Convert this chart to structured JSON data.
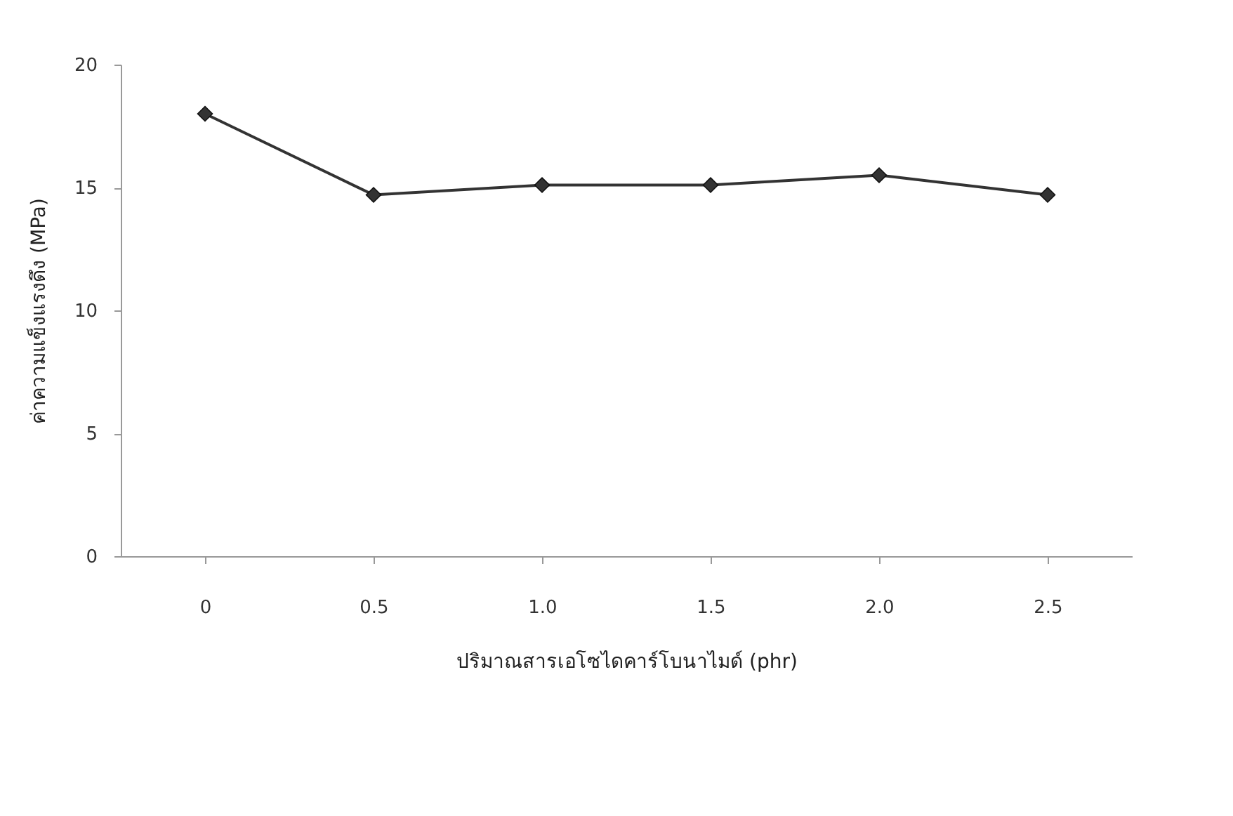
{
  "chart_data": {
    "type": "line",
    "xlabel": "ปริมาณสารเอโซไดคาร์โบนาไมด์ (phr)",
    "ylabel": "ค่าความแข็งแรงดึง (MPa)",
    "categories": [
      "0",
      "0.5",
      "1.0",
      "1.5",
      "2.0",
      "2.5"
    ],
    "series": [
      {
        "color": "#333333",
        "values": [
          18.0,
          14.7,
          15.1,
          15.1,
          15.5,
          14.7
        ]
      }
    ],
    "ylim": [
      0,
      20
    ],
    "yticks": [
      0,
      5,
      10,
      15,
      20
    ],
    "grid": false,
    "marker": "diamond",
    "line_style": "solid"
  }
}
